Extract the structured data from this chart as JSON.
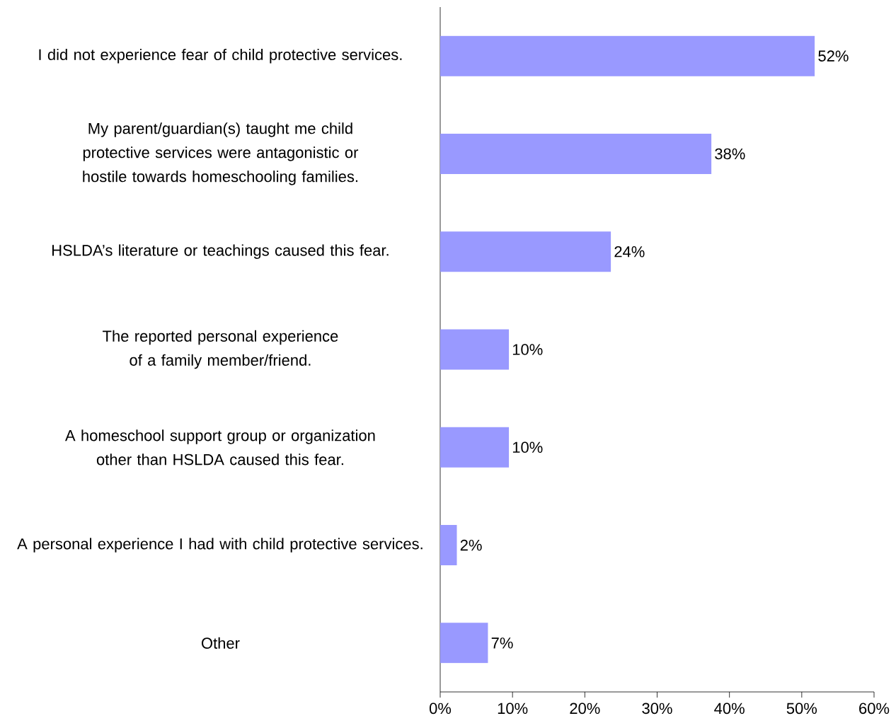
{
  "chart_data": {
    "type": "bar",
    "orientation": "horizontal",
    "categories": [
      "I did not experience fear of child protective services.",
      "My parent/guardian(s) taught me child protective services were antagonistic or hostile towards homeschooling families.",
      "HSLDA’s literature or teachings caused this fear.",
      "The reported personal experience of a family member/friend.",
      "A homeschool support group or organization other than HSLDA caused this fear.",
      "A personal experience I had with child protective services.",
      "Other"
    ],
    "values": [
      51.8,
      37.5,
      23.6,
      9.5,
      9.5,
      2.3,
      6.6
    ],
    "value_labels": [
      "52%",
      "38%",
      "24%",
      "10%",
      "10%",
      "2%",
      "7%"
    ],
    "color": "#9999ff",
    "xlim": [
      0,
      60
    ],
    "xticks": [
      {
        "value": 0,
        "label": "0%"
      },
      {
        "value": 10,
        "label": "10%"
      },
      {
        "value": 20,
        "label": "20%"
      },
      {
        "value": 30,
        "label": "30%"
      },
      {
        "value": 40,
        "label": "40%"
      },
      {
        "value": 50,
        "label": "50%"
      },
      {
        "value": 60,
        "label": "60%"
      }
    ]
  }
}
